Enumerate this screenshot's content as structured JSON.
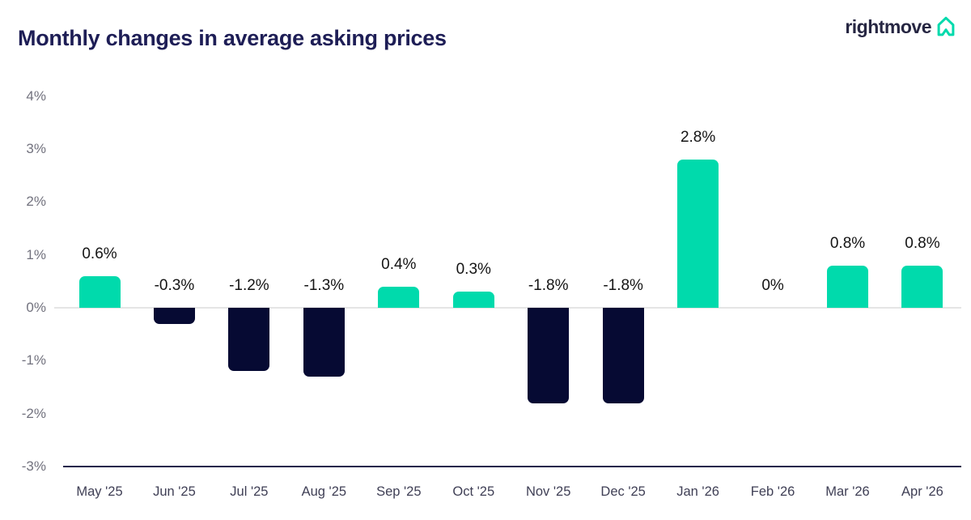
{
  "header": {
    "title": "Monthly changes in average asking prices",
    "logo_text": "rightmove"
  },
  "colors": {
    "positive_bar": "#00DAAC",
    "negative_bar": "#060A33",
    "title_text": "#1E1E56",
    "logo_navy": "#262642",
    "logo_teal": "#00DAAC",
    "y_tick_text": "#72727E",
    "x_tick_text": "#3F3F55",
    "data_label_text": "#141414",
    "zero_line": "#E5E5E5",
    "axis_line": "#23234B"
  },
  "chart_data": {
    "type": "bar",
    "title": "Monthly changes in average asking prices",
    "categories": [
      "May '25",
      "Jun '25",
      "Jul '25",
      "Aug '25",
      "Sep '25",
      "Oct '25",
      "Nov '25",
      "Dec '25",
      "Jan '26",
      "Feb '26",
      "Mar '26",
      "Apr '26"
    ],
    "values": [
      0.6,
      -0.3,
      -1.2,
      -1.3,
      0.4,
      0.3,
      -1.8,
      -1.8,
      2.8,
      0,
      0.8,
      0.8
    ],
    "data_labels": [
      "0.6%",
      "-0.3%",
      "-1.2%",
      "-1.3%",
      "0.4%",
      "0.3%",
      "-1.8%",
      "-1.8%",
      "2.8%",
      "0%",
      "0.8%",
      "0.8%"
    ],
    "y_ticks": [
      "4%",
      "3%",
      "2%",
      "1%",
      "0%",
      "-1%",
      "-2%",
      "-3%"
    ],
    "y_tick_values": [
      4,
      3,
      2,
      1,
      0,
      -1,
      -2,
      -3
    ],
    "ylim": [
      -3,
      4
    ],
    "xlabel": "",
    "ylabel": "",
    "grid": false,
    "legend": "none",
    "data_labels_shown": true
  }
}
